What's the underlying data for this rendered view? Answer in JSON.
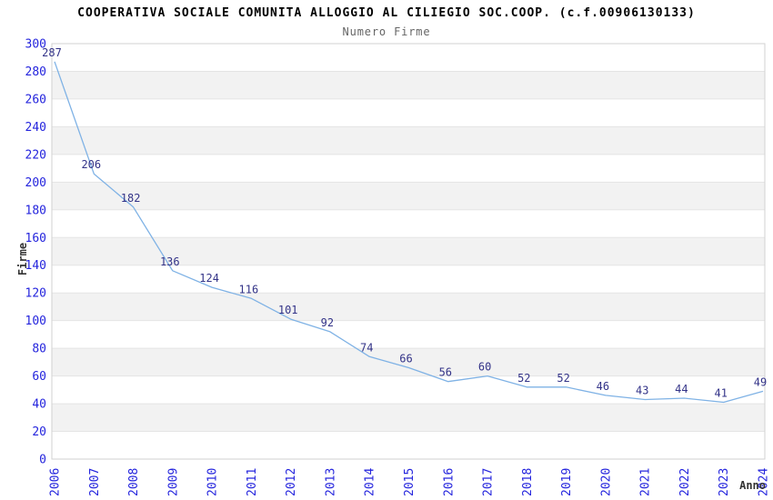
{
  "chart_data": {
    "type": "line",
    "title": "COOPERATIVA SOCIALE COMUNITA ALLOGGIO AL CILIEGIO SOC.COOP. (c.f.00906130133)",
    "subtitle": "Numero Firme",
    "xlabel": "Anno",
    "ylabel": "Firme",
    "categories": [
      "2006",
      "2007",
      "2008",
      "2009",
      "2010",
      "2011",
      "2012",
      "2013",
      "2014",
      "2015",
      "2016",
      "2017",
      "2018",
      "2019",
      "2020",
      "2021",
      "2022",
      "2023",
      "2024"
    ],
    "values": [
      287,
      206,
      182,
      136,
      124,
      116,
      101,
      92,
      74,
      66,
      56,
      60,
      52,
      52,
      46,
      43,
      44,
      41,
      49
    ],
    "ylim": [
      0,
      300
    ],
    "ytick_step": 20,
    "legend": "none",
    "grid": "horizontal-bands-alternating",
    "point_labels_visible": true,
    "colors": {
      "line": "#7fb2e5",
      "point_label": "#333388",
      "tick_label": "#2424dd",
      "band_alt": "#f2f2f2",
      "band_main": "#ffffff",
      "gridline": "#e4e4e4",
      "border": "#d2d2d2",
      "title": "#000000",
      "subtitle": "#666666",
      "axis_label": "#333333"
    }
  }
}
